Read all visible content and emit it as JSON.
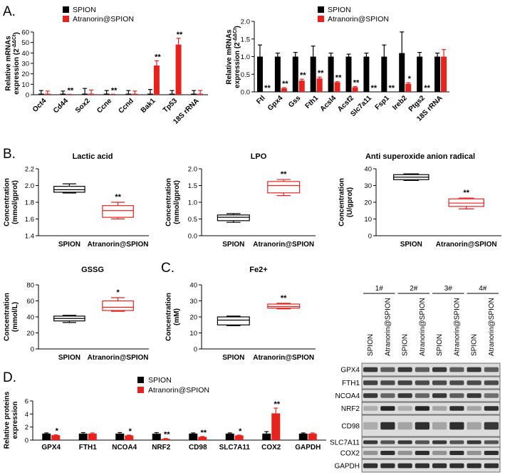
{
  "colors": {
    "spion": "#000000",
    "atranorin": "#e8231e",
    "box_spion": "#000000",
    "box_atranorin": "#e8231e"
  },
  "panel_letters": [
    "A.",
    "B.",
    "C.",
    "D."
  ],
  "legend": {
    "spion": "SPION",
    "atranorin": "Atranorin@SPION"
  },
  "chart_data": [
    {
      "id": "a1",
      "type": "bar",
      "ylabel": "Relative mRNAs expression (2^-ΔΔCt)",
      "ylabel_lines": [
        "Relative mRNAs",
        "expression (2"
      ],
      "ylabel_sup": "-ΔΔCt",
      "ylim": [
        0,
        60
      ],
      "yticks": [
        0,
        10,
        20,
        30,
        40,
        50,
        60
      ],
      "categories": [
        "Oct4",
        "Cd44",
        "Sox2",
        "Ccne",
        "Ccnd",
        "Bak1",
        "Tp53",
        "18S rRNA"
      ],
      "series": [
        {
          "name": "SPION",
          "values": [
            1.0,
            1.0,
            1.0,
            1.0,
            1.0,
            1.0,
            1.0,
            1.0
          ],
          "errors": [
            3,
            2.5,
            5,
            3,
            3,
            4,
            3,
            3
          ]
        },
        {
          "name": "Atranorin@SPION",
          "values": [
            1.0,
            0.1,
            1.0,
            0.1,
            1.0,
            28,
            48,
            1.0
          ],
          "errors": [
            2.5,
            0.3,
            3.5,
            0.4,
            2.5,
            4.5,
            6,
            3
          ]
        }
      ],
      "significance": [
        "",
        "**",
        "",
        "**",
        "",
        "**",
        "**",
        ""
      ]
    },
    {
      "id": "a2",
      "type": "bar",
      "ylabel": "Relative mRNAs expression (2^-ΔΔCt)",
      "ylabel_lines": [
        "Relative mRNAs",
        "expression (2"
      ],
      "ylabel_sup": "-ΔΔCt",
      "ylim": [
        0,
        2.0
      ],
      "yticks": [
        "0.0",
        "0.5",
        "1.0",
        "1.5",
        "2.0"
      ],
      "yticks_num": [
        0,
        0.5,
        1.0,
        1.5,
        2.0
      ],
      "categories": [
        "Ftl",
        "Gpx4",
        "Gss",
        "Fth1",
        "Acsl4",
        "Acsf2",
        "Slc7a11",
        "Fsp1",
        "Ireb2",
        "Ptgs2",
        "18S rRNA"
      ],
      "series": [
        {
          "name": "SPION",
          "values": [
            1.0,
            1.0,
            1.0,
            1.0,
            1.0,
            1.0,
            1.0,
            1.0,
            1.1,
            1.0,
            1.0
          ],
          "errors": [
            0.33,
            0.1,
            0.12,
            0.3,
            0.1,
            0.07,
            0.1,
            0.33,
            0.6,
            0.12,
            0.1
          ]
        },
        {
          "name": "Atranorin@SPION",
          "values": [
            0.0,
            0.1,
            0.32,
            0.38,
            0.27,
            0.13,
            0.0,
            0.0,
            0.23,
            0.0,
            1.0
          ],
          "errors": [
            0,
            0.02,
            0.04,
            0.04,
            0.02,
            0.02,
            0,
            0,
            0.03,
            0,
            0.2
          ]
        }
      ],
      "significance": [
        "**",
        "**",
        "**",
        "**",
        "**",
        "**",
        "**",
        "**",
        "*",
        "**",
        ""
      ]
    },
    {
      "id": "b1",
      "type": "box",
      "title": "Lactic acid",
      "ylabel": "Concentration (mmol/gprot)",
      "ylabel_lines": [
        "Concentration",
        "(mmol/gprot)"
      ],
      "ylim": [
        1.4,
        2.2
      ],
      "yticks": [
        "1.4",
        "1.6",
        "1.8",
        "2.0",
        "2.2"
      ],
      "yticks_num": [
        1.4,
        1.6,
        1.8,
        2.0,
        2.2
      ],
      "categories": [
        "SPION",
        "Atranorin@SPION"
      ],
      "boxes": [
        {
          "min": 1.91,
          "q1": 1.92,
          "median": 1.95,
          "q3": 1.99,
          "max": 2.02
        },
        {
          "min": 1.6,
          "q1": 1.62,
          "median": 1.7,
          "q3": 1.76,
          "max": 1.8
        }
      ],
      "significance": "**"
    },
    {
      "id": "b2",
      "type": "box",
      "title": "LPO",
      "ylabel": "Concentration (mmol/gprot)",
      "ylabel_lines": [
        "Concentration",
        "(mmol/gprot)"
      ],
      "ylim": [
        0,
        2.0
      ],
      "yticks": [
        "0.0",
        "0.5",
        "1.0",
        "1.5",
        "2.0"
      ],
      "yticks_num": [
        0,
        0.5,
        1.0,
        1.5,
        2.0
      ],
      "categories": [
        "SPION",
        "Atranorin@SPION"
      ],
      "boxes": [
        {
          "min": 0.4,
          "q1": 0.45,
          "median": 0.55,
          "q3": 0.62,
          "max": 0.66
        },
        {
          "min": 1.2,
          "q1": 1.28,
          "median": 1.5,
          "q3": 1.62,
          "max": 1.68
        }
      ],
      "significance": "**"
    },
    {
      "id": "b3",
      "type": "box",
      "title": "Anti superoxide anion radical",
      "ylabel": "Concentration (U/gprot)",
      "ylabel_lines": [
        "Concentration",
        "(U/gprot)"
      ],
      "ylim": [
        0,
        40
      ],
      "yticks": [
        "0",
        "10",
        "20",
        "30",
        "40"
      ],
      "yticks_num": [
        0,
        10,
        20,
        30,
        40
      ],
      "categories": [
        "SPION",
        "Atranorin@SPION"
      ],
      "boxes": [
        {
          "min": 33,
          "q1": 33.5,
          "median": 35,
          "q3": 36.5,
          "max": 37
        },
        {
          "min": 16,
          "q1": 17.5,
          "median": 19.5,
          "q3": 22,
          "max": 22.5
        }
      ],
      "significance": "**"
    },
    {
      "id": "b4",
      "type": "box",
      "title": "GSSG",
      "ylabel": "Concentration (mmol/L)",
      "ylabel_lines": [
        "Concentration",
        "(mmol/L)"
      ],
      "ylim": [
        0,
        80
      ],
      "yticks": [
        "0",
        "20",
        "40",
        "60",
        "80"
      ],
      "yticks_num": [
        0,
        20,
        40,
        60,
        80
      ],
      "categories": [
        "SPION",
        "Atranorin@SPION"
      ],
      "boxes": [
        {
          "min": 33,
          "q1": 35,
          "median": 38,
          "q3": 41,
          "max": 42
        },
        {
          "min": 47,
          "q1": 48,
          "median": 52,
          "q3": 60,
          "max": 64
        }
      ],
      "significance": "*"
    },
    {
      "id": "c1",
      "type": "box",
      "title": "Fe2+",
      "ylabel": "Concentration (mM)",
      "ylabel_lines": [
        "Concentration",
        "(mM)"
      ],
      "ylim": [
        0,
        40
      ],
      "yticks": [
        "0",
        "10",
        "20",
        "30",
        "40"
      ],
      "yticks_num": [
        0,
        10,
        20,
        30,
        40
      ],
      "categories": [
        "SPION",
        "Atranorin@SPION"
      ],
      "boxes": [
        {
          "min": 14.5,
          "q1": 15,
          "median": 18,
          "q3": 20,
          "max": 20.5
        },
        {
          "min": 25,
          "q1": 25.5,
          "median": 26.5,
          "q3": 28,
          "max": 28.5
        }
      ],
      "significance": "**"
    },
    {
      "id": "d1",
      "type": "bar",
      "ylabel": "Relative proteins expression",
      "ylabel_lines": [
        "Relative proteins",
        "expression"
      ],
      "ylim": [
        0,
        6
      ],
      "yticks": [
        "0",
        "2",
        "4",
        "6"
      ],
      "yticks_num": [
        0,
        2,
        4,
        6
      ],
      "categories": [
        "GPX4",
        "FTH1",
        "NCOA4",
        "NRF2",
        "CD98",
        "SLC7A11",
        "COX2",
        "GAPDH"
      ],
      "series": [
        {
          "name": "SPION",
          "values": [
            1.0,
            1.0,
            1.0,
            1.0,
            1.0,
            1.0,
            1.0,
            1.0
          ],
          "errors": [
            0.1,
            0.15,
            0.15,
            0.15,
            0.1,
            0.1,
            0.3,
            0.1
          ]
        },
        {
          "name": "Atranorin@SPION",
          "values": [
            0.75,
            1.0,
            0.72,
            0.2,
            0.5,
            0.72,
            4.1,
            1.0
          ],
          "errors": [
            0.05,
            0.1,
            0.05,
            0.05,
            0.05,
            0.05,
            0.8,
            0.1
          ]
        }
      ],
      "significance": [
        "*",
        "",
        "*",
        "**",
        "**",
        "*",
        "**",
        ""
      ]
    }
  ],
  "western_blot": {
    "groups": [
      "1#",
      "2#",
      "3#",
      "4#"
    ],
    "lanes": [
      "SPION",
      "Atranorin@SPION",
      "SPION",
      "Atranorin@SPION",
      "SPION",
      "Atranorin@SPION",
      "SPION",
      "Atranorin@SPION"
    ],
    "proteins": [
      "GPX4",
      "FTH1",
      "NCOA4",
      "NRF2",
      "CD98",
      "SLC7A11",
      "COX2",
      "GAPDH"
    ]
  }
}
